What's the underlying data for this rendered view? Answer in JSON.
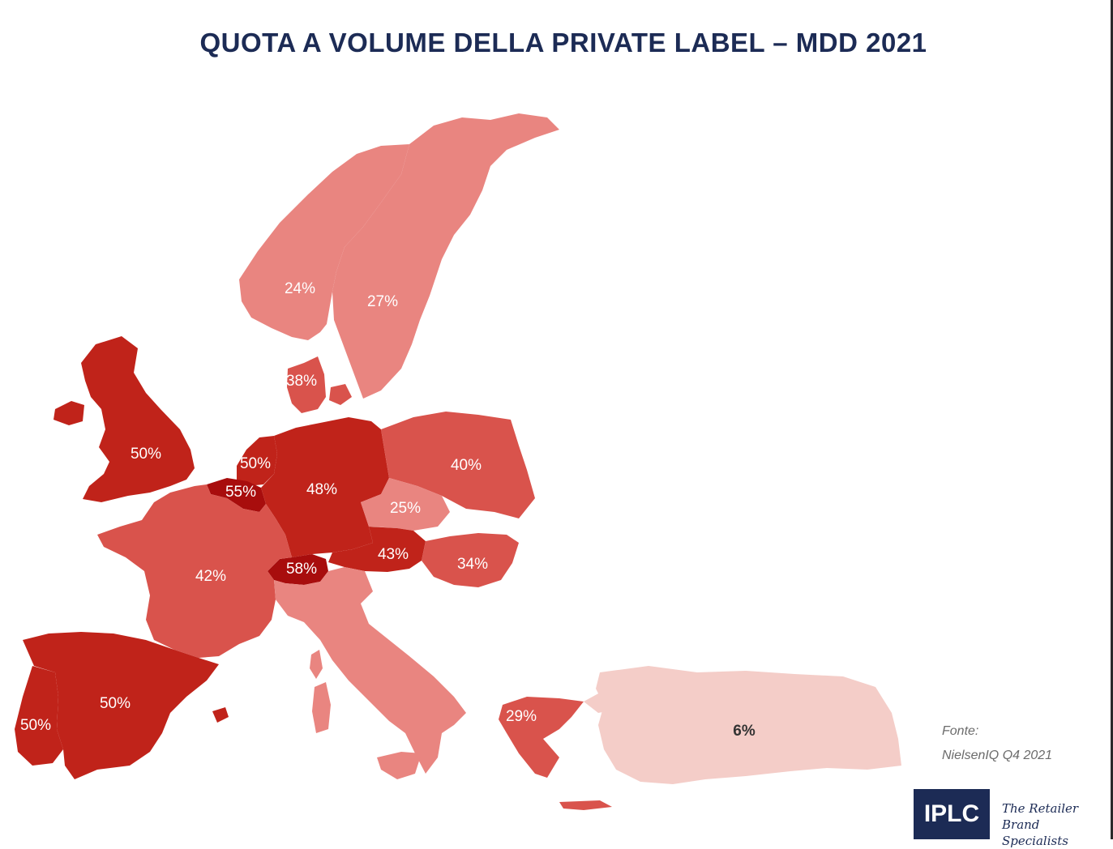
{
  "title": "QUOTA A VOLUME DELLA PRIVATE LABEL – MDD 2021",
  "source": {
    "label": "Fonte:",
    "text": "NielsenIQ  Q4 2021"
  },
  "logo": {
    "text": "IPLC",
    "tagline_line1": "The Retailer Brand",
    "tagline_line2": "Specialists"
  },
  "color_scale": {
    "lightest": "#f4cdc8",
    "light": "#e98580",
    "medium": "#d9534c",
    "dark": "#c0231a",
    "darkest": "#a80d0d"
  },
  "regions": [
    {
      "id": "norway",
      "share": "24%"
    },
    {
      "id": "sweden",
      "share": "27%"
    },
    {
      "id": "denmark",
      "share": "38%"
    },
    {
      "id": "united-kingdom",
      "share": "50%"
    },
    {
      "id": "netherlands",
      "share": "50%"
    },
    {
      "id": "belgium",
      "share": "55%"
    },
    {
      "id": "germany",
      "share": "48%"
    },
    {
      "id": "poland",
      "share": "40%"
    },
    {
      "id": "czech-republic",
      "share": "25%"
    },
    {
      "id": "austria",
      "share": "43%"
    },
    {
      "id": "hungary",
      "share": "34%"
    },
    {
      "id": "switzerland",
      "share": "58%"
    },
    {
      "id": "france",
      "share": "42%"
    },
    {
      "id": "spain",
      "share": "50%"
    },
    {
      "id": "portugal",
      "share": "50%"
    },
    {
      "id": "greece",
      "share": "29%"
    },
    {
      "id": "turkey",
      "share": "6%"
    }
  ]
}
